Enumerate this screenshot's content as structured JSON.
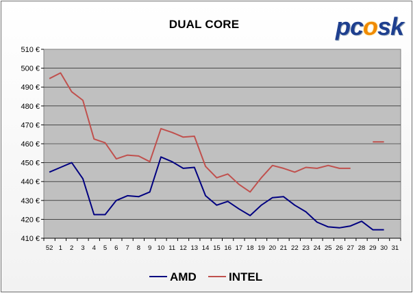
{
  "chart_data": {
    "type": "line",
    "title": "DUAL CORE",
    "xlabel": "",
    "ylabel": "",
    "categories": [
      "52",
      "1",
      "2",
      "3",
      "4",
      "5",
      "6",
      "7",
      "8",
      "9",
      "10",
      "11",
      "12",
      "13",
      "14",
      "15",
      "16",
      "17",
      "18",
      "19",
      "20",
      "21",
      "22",
      "23",
      "24",
      "25",
      "26",
      "27",
      "28",
      "29",
      "30",
      "31"
    ],
    "y_ticks": [
      "410 €",
      "420 €",
      "430 €",
      "440 €",
      "450 €",
      "460 €",
      "470 €",
      "480 €",
      "490 €",
      "500 €",
      "510 €"
    ],
    "ylim": [
      410,
      510
    ],
    "grid": true,
    "legend_position": "bottom",
    "series": [
      {
        "name": "AMD",
        "color": "#000080",
        "values": [
          445,
          447.5,
          450,
          441.5,
          422.5,
          422.5,
          430,
          432.5,
          432,
          434.5,
          453,
          450.5,
          447,
          447.5,
          432.5,
          427.5,
          429.5,
          425.5,
          422,
          427.5,
          431.5,
          432,
          427.5,
          424,
          418.5,
          416,
          415.5,
          416.5,
          419,
          414.5,
          414.5,
          null
        ]
      },
      {
        "name": "INTEL",
        "color": "#c0504d",
        "values": [
          494.5,
          497.5,
          487.5,
          483,
          462.5,
          460.5,
          452,
          454,
          453.5,
          450.5,
          468,
          466,
          463.5,
          464,
          448,
          442,
          444,
          438.5,
          434.5,
          442,
          448.5,
          447,
          445,
          447.5,
          447,
          448.5,
          447,
          447,
          null,
          461,
          461,
          null
        ]
      }
    ]
  },
  "logo": {
    "text_left": "pc",
    "text_flame": "o",
    "text_right": "sk"
  }
}
